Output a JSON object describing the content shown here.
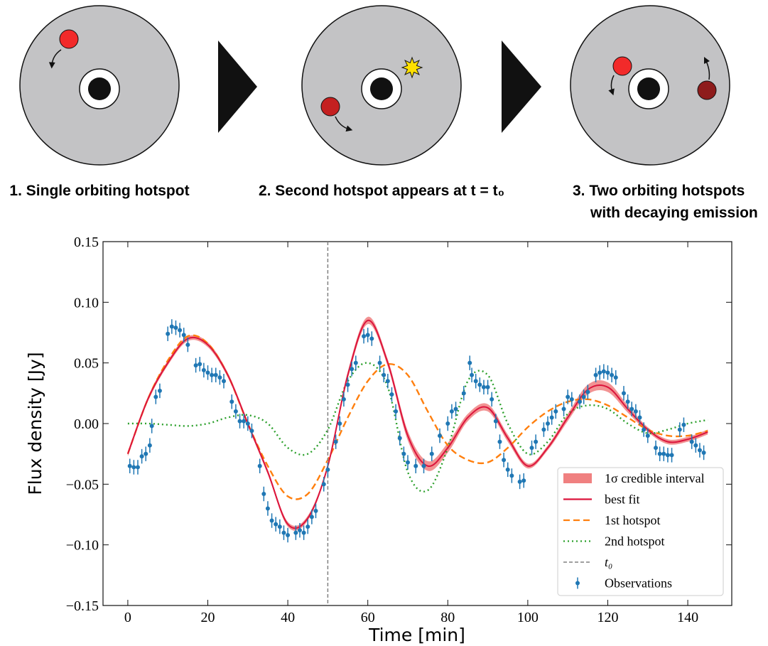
{
  "diagram": {
    "panels": [
      {
        "caption": [
          "1. Single orbiting hotspot"
        ]
      },
      {
        "caption": [
          "2. Second hotspot appears at t = t₀"
        ]
      },
      {
        "caption": [
          "3. Two orbiting hotspots",
          "with decaying emission"
        ]
      }
    ]
  },
  "chart_data": {
    "type": "line",
    "xlabel": "Time [min]",
    "ylabel": "Flux density [Jy]",
    "xlim": [
      -6.2,
      151
    ],
    "ylim": [
      -0.15,
      0.15
    ],
    "xticks": [
      0,
      20,
      40,
      60,
      80,
      100,
      120,
      140
    ],
    "yticks": [
      {
        "value": -0.15,
        "label": "−0.15"
      },
      {
        "value": -0.1,
        "label": "−0.10"
      },
      {
        "value": -0.05,
        "label": "−0.05"
      },
      {
        "value": 0,
        "label": "0.00"
      },
      0.05,
      {
        "value": 0.1,
        "label": "0.10"
      },
      0.15
    ],
    "legend": "lower right",
    "x": [
      0,
      5,
      10,
      15,
      20,
      25,
      30,
      35,
      40,
      45,
      50,
      55,
      60,
      65,
      70,
      75,
      80,
      85,
      90,
      95,
      100,
      105,
      110,
      115,
      120,
      125,
      130,
      135,
      140,
      145
    ],
    "band": {
      "name": "1σ credible interval",
      "color": "#f08080",
      "lower": [
        -0.027,
        0.018,
        0.048,
        0.068,
        0.063,
        0.038,
        -0.002,
        -0.042,
        -0.085,
        -0.08,
        -0.037,
        0.037,
        0.082,
        0.047,
        -0.014,
        -0.039,
        -0.024,
        0.002,
        0.01,
        -0.015,
        -0.037,
        -0.022,
        0.002,
        0.024,
        0.026,
        0.009,
        -0.007,
        -0.017,
        -0.015,
        -0.009
      ],
      "upper": [
        -0.023,
        0.022,
        0.052,
        0.072,
        0.067,
        0.042,
        0.002,
        -0.038,
        -0.081,
        -0.076,
        -0.033,
        0.043,
        0.088,
        0.053,
        -0.006,
        -0.031,
        -0.016,
        0.008,
        0.016,
        -0.009,
        -0.033,
        -0.018,
        0.008,
        0.032,
        0.034,
        0.015,
        -0.003,
        -0.013,
        -0.011,
        -0.005
      ]
    },
    "series": [
      {
        "name": "best fit",
        "color": "#dc143c",
        "style": "solid",
        "values": [
          -0.025,
          0.02,
          0.05,
          0.07,
          0.065,
          0.04,
          0.0,
          -0.04,
          -0.083,
          -0.078,
          -0.035,
          0.04,
          0.085,
          0.05,
          -0.01,
          -0.035,
          -0.02,
          0.005,
          0.013,
          -0.012,
          -0.035,
          -0.02,
          0.005,
          0.028,
          0.03,
          0.012,
          -0.005,
          -0.015,
          -0.013,
          -0.007
        ]
      },
      {
        "name": "1st hotspot",
        "color": "#ff7f0e",
        "style": "dashed",
        "values": [
          -0.025,
          0.02,
          0.052,
          0.072,
          0.066,
          0.04,
          0.0,
          -0.035,
          -0.06,
          -0.058,
          -0.03,
          0.005,
          0.035,
          0.049,
          0.04,
          0.01,
          -0.018,
          -0.03,
          -0.032,
          -0.02,
          -0.003,
          0.01,
          0.018,
          0.02,
          0.015,
          0.005,
          -0.005,
          -0.01,
          -0.01,
          -0.006
        ]
      },
      {
        "name": "2nd hotspot",
        "color": "#2ca02c",
        "style": "dotted",
        "values": [
          0.0,
          0.0,
          -0.001,
          -0.002,
          0.0,
          0.005,
          0.007,
          0.0,
          -0.02,
          -0.025,
          -0.005,
          0.035,
          0.05,
          0.03,
          -0.04,
          -0.055,
          -0.02,
          0.035,
          0.04,
          0.0,
          -0.025,
          -0.015,
          0.008,
          0.015,
          0.012,
          0.0,
          -0.008,
          -0.005,
          0.0,
          0.003
        ]
      }
    ],
    "vline": {
      "name": "t₀",
      "x": 50,
      "color": "#808080"
    },
    "observations": {
      "name": "Observations",
      "color": "#1f77b4",
      "yerr": 0.006,
      "x": [
        0.5,
        1.5,
        2.5,
        3.5,
        4.5,
        5.5,
        6,
        7,
        8,
        10,
        11,
        12,
        13,
        14,
        15,
        17,
        18,
        19,
        20,
        21,
        22,
        23,
        24,
        26,
        27,
        28,
        29,
        30,
        31,
        33,
        34,
        35,
        36,
        37,
        38,
        39,
        40,
        42,
        43,
        44,
        45,
        46,
        47,
        49,
        50,
        52,
        53,
        54,
        55,
        56,
        57,
        59,
        60,
        61,
        63,
        64,
        65,
        66,
        67,
        68,
        69,
        70,
        72,
        74,
        76,
        78,
        80,
        81,
        82,
        84,
        85.5,
        86,
        87,
        88,
        89,
        90,
        91,
        92,
        93,
        94,
        95,
        96,
        98,
        99,
        101,
        102,
        104,
        105,
        106,
        107,
        109,
        110,
        111,
        113,
        114,
        115,
        117,
        118,
        119,
        120,
        121,
        122,
        124,
        125,
        126,
        127,
        128,
        129,
        130,
        132,
        133,
        134,
        135,
        136,
        138,
        139,
        141,
        142,
        143,
        144
      ],
      "values": [
        -0.035,
        -0.036,
        -0.036,
        -0.027,
        -0.025,
        -0.018,
        -0.002,
        0.022,
        0.027,
        0.074,
        0.08,
        0.079,
        0.077,
        0.073,
        0.065,
        0.048,
        0.049,
        0.044,
        0.042,
        0.04,
        0.04,
        0.038,
        0.035,
        0.018,
        0.01,
        0.002,
        0.002,
        0.0,
        -0.006,
        -0.035,
        -0.058,
        -0.07,
        -0.08,
        -0.083,
        -0.085,
        -0.09,
        -0.092,
        -0.09,
        -0.088,
        -0.09,
        -0.085,
        -0.077,
        -0.072,
        -0.05,
        -0.038,
        -0.015,
        0.0,
        0.02,
        0.032,
        0.045,
        0.05,
        0.072,
        0.073,
        0.07,
        0.05,
        0.04,
        0.035,
        0.024,
        0.01,
        -0.012,
        -0.025,
        -0.032,
        -0.035,
        -0.035,
        -0.025,
        -0.01,
        0.0,
        0.01,
        0.012,
        0.025,
        0.05,
        0.04,
        0.035,
        0.032,
        0.03,
        0.03,
        0.02,
        0.002,
        -0.015,
        -0.03,
        -0.038,
        -0.043,
        -0.048,
        -0.047,
        -0.02,
        -0.015,
        -0.005,
        0.0,
        0.005,
        0.01,
        0.012,
        0.022,
        0.02,
        0.018,
        0.022,
        0.026,
        0.04,
        0.042,
        0.043,
        0.042,
        0.04,
        0.038,
        0.025,
        0.018,
        0.012,
        0.01,
        0.005,
        -0.005,
        -0.01,
        -0.02,
        -0.025,
        -0.025,
        -0.026,
        -0.026,
        -0.005,
        -0.001,
        -0.015,
        -0.018,
        -0.022,
        -0.024
      ]
    }
  }
}
